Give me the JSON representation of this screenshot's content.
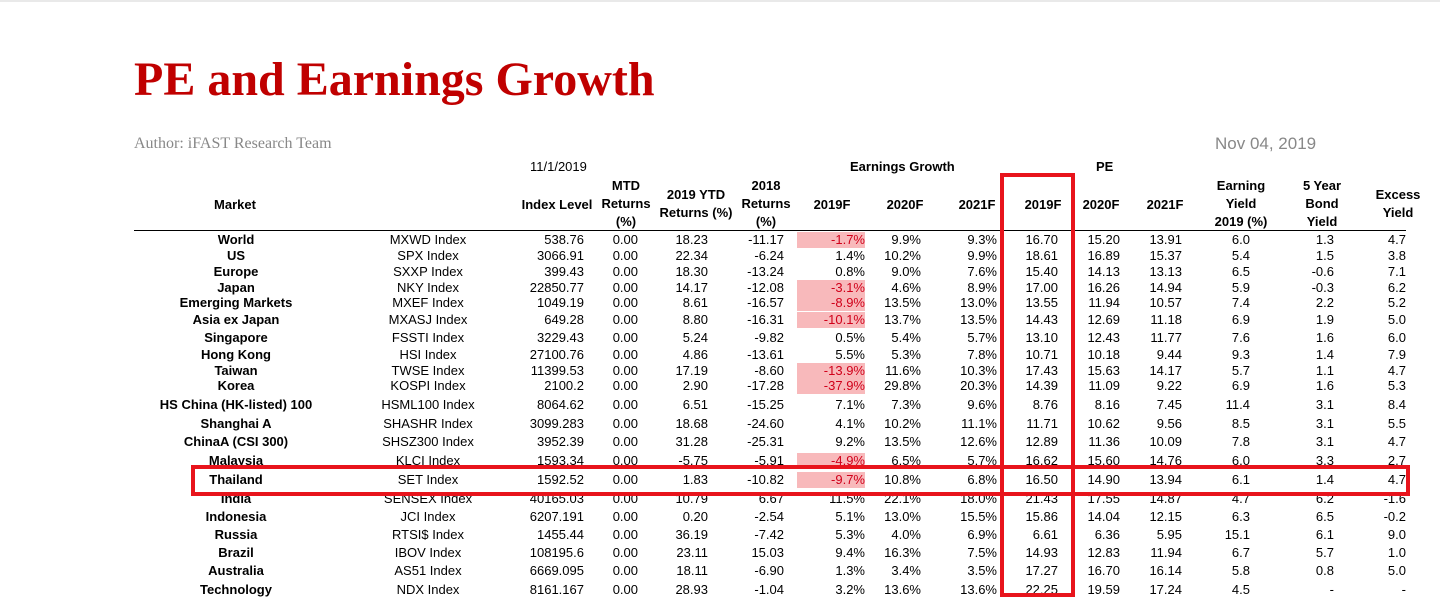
{
  "title": "PE and Earnings Growth",
  "author": "Author: iFAST Research Team",
  "date": "Nov 04, 2019",
  "table": {
    "date_header": "11/1/2019",
    "group_earnings": "Earnings Growth",
    "group_pe": "PE",
    "columns": {
      "market": "Market",
      "index_level": "Index Level",
      "mtd": [
        "MTD",
        "Returns",
        "(%)"
      ],
      "ytd": [
        "2019 YTD",
        "Returns (%)"
      ],
      "ret2018": [
        "2018",
        "Returns",
        "(%)"
      ],
      "eg2019": "2019F",
      "eg2020": "2020F",
      "eg2021": "2021F",
      "pe2019": "2019F",
      "pe2020": "2020F",
      "pe2021": "2021F",
      "earning_yield": [
        "Earning",
        "Yield",
        "2019 (%)"
      ],
      "bond": [
        "5 Year",
        "Bond",
        "Yield"
      ],
      "excess": [
        "Excess",
        "Yield"
      ]
    },
    "rows": [
      {
        "market": "World",
        "ticker": "MXWD Index",
        "level": "538.76",
        "mtd": "0.00",
        "ytd": "18.23",
        "r2018": "-11.17",
        "eg2019": "-1.7%",
        "eg2020": "9.9%",
        "eg2021": "9.3%",
        "pe2019": "16.70",
        "pe2020": "15.20",
        "pe2021": "13.91",
        "ey": "6.0",
        "bond": "1.3",
        "excess": "4.7",
        "neg": true
      },
      {
        "market": "US",
        "ticker": "SPX Index",
        "level": "3066.91",
        "mtd": "0.00",
        "ytd": "22.34",
        "r2018": "-6.24",
        "eg2019": "1.4%",
        "eg2020": "10.2%",
        "eg2021": "9.9%",
        "pe2019": "18.61",
        "pe2020": "16.89",
        "pe2021": "15.37",
        "ey": "5.4",
        "bond": "1.5",
        "excess": "3.8",
        "neg": false
      },
      {
        "market": "Europe",
        "ticker": "SXXP Index",
        "level": "399.43",
        "mtd": "0.00",
        "ytd": "18.30",
        "r2018": "-13.24",
        "eg2019": "0.8%",
        "eg2020": "9.0%",
        "eg2021": "7.6%",
        "pe2019": "15.40",
        "pe2020": "14.13",
        "pe2021": "13.13",
        "ey": "6.5",
        "bond": "-0.6",
        "excess": "7.1",
        "neg": false
      },
      {
        "market": "Japan",
        "ticker": "NKY Index",
        "level": "22850.77",
        "mtd": "0.00",
        "ytd": "14.17",
        "r2018": "-12.08",
        "eg2019": "-3.1%",
        "eg2020": "4.6%",
        "eg2021": "8.9%",
        "pe2019": "17.00",
        "pe2020": "16.26",
        "pe2021": "14.94",
        "ey": "5.9",
        "bond": "-0.3",
        "excess": "6.2",
        "neg": true
      },
      {
        "market": "Emerging Markets",
        "ticker": "MXEF Index",
        "level": "1049.19",
        "mtd": "0.00",
        "ytd": "8.61",
        "r2018": "-16.57",
        "eg2019": "-8.9%",
        "eg2020": "13.5%",
        "eg2021": "13.0%",
        "pe2019": "13.55",
        "pe2020": "11.94",
        "pe2021": "10.57",
        "ey": "7.4",
        "bond": "2.2",
        "excess": "5.2",
        "neg": true
      },
      {
        "market": "Asia ex Japan",
        "ticker": "MXASJ Index",
        "level": "649.28",
        "mtd": "0.00",
        "ytd": "8.80",
        "r2018": "-16.31",
        "eg2019": "-10.1%",
        "eg2020": "13.7%",
        "eg2021": "13.5%",
        "pe2019": "14.43",
        "pe2020": "12.69",
        "pe2021": "11.18",
        "ey": "6.9",
        "bond": "1.9",
        "excess": "5.0",
        "neg": true
      },
      {
        "market": "Singapore",
        "ticker": "FSSTI Index",
        "level": "3229.43",
        "mtd": "0.00",
        "ytd": "5.24",
        "r2018": "-9.82",
        "eg2019": "0.5%",
        "eg2020": "5.4%",
        "eg2021": "5.7%",
        "pe2019": "13.10",
        "pe2020": "12.43",
        "pe2021": "11.77",
        "ey": "7.6",
        "bond": "1.6",
        "excess": "6.0",
        "neg": false
      },
      {
        "market": "Hong Kong",
        "ticker": "HSI Index",
        "level": "27100.76",
        "mtd": "0.00",
        "ytd": "4.86",
        "r2018": "-13.61",
        "eg2019": "5.5%",
        "eg2020": "5.3%",
        "eg2021": "7.8%",
        "pe2019": "10.71",
        "pe2020": "10.18",
        "pe2021": "9.44",
        "ey": "9.3",
        "bond": "1.4",
        "excess": "7.9",
        "neg": false
      },
      {
        "market": "Taiwan",
        "ticker": "TWSE Index",
        "level": "11399.53",
        "mtd": "0.00",
        "ytd": "17.19",
        "r2018": "-8.60",
        "eg2019": "-13.9%",
        "eg2020": "11.6%",
        "eg2021": "10.3%",
        "pe2019": "17.43",
        "pe2020": "15.63",
        "pe2021": "14.17",
        "ey": "5.7",
        "bond": "1.1",
        "excess": "4.7",
        "neg": true
      },
      {
        "market": "Korea",
        "ticker": "KOSPI Index",
        "level": "2100.2",
        "mtd": "0.00",
        "ytd": "2.90",
        "r2018": "-17.28",
        "eg2019": "-37.9%",
        "eg2020": "29.8%",
        "eg2021": "20.3%",
        "pe2019": "14.39",
        "pe2020": "11.09",
        "pe2021": "9.22",
        "ey": "6.9",
        "bond": "1.6",
        "excess": "5.3",
        "neg": true
      },
      {
        "market": "HS China (HK-listed) 100",
        "ticker": "HSML100 Index",
        "level": "8064.62",
        "mtd": "0.00",
        "ytd": "6.51",
        "r2018": "-15.25",
        "eg2019": "7.1%",
        "eg2020": "7.3%",
        "eg2021": "9.6%",
        "pe2019": "8.76",
        "pe2020": "8.16",
        "pe2021": "7.45",
        "ey": "11.4",
        "bond": "3.1",
        "excess": "8.4",
        "neg": false
      },
      {
        "market": "Shanghai A",
        "ticker": "SHASHR Index",
        "level": "3099.283",
        "mtd": "0.00",
        "ytd": "18.68",
        "r2018": "-24.60",
        "eg2019": "4.1%",
        "eg2020": "10.2%",
        "eg2021": "11.1%",
        "pe2019": "11.71",
        "pe2020": "10.62",
        "pe2021": "9.56",
        "ey": "8.5",
        "bond": "3.1",
        "excess": "5.5",
        "neg": false
      },
      {
        "market": "ChinaA (CSI 300)",
        "ticker": "SHSZ300 Index",
        "level": "3952.39",
        "mtd": "0.00",
        "ytd": "31.28",
        "r2018": "-25.31",
        "eg2019": "9.2%",
        "eg2020": "13.5%",
        "eg2021": "12.6%",
        "pe2019": "12.89",
        "pe2020": "11.36",
        "pe2021": "10.09",
        "ey": "7.8",
        "bond": "3.1",
        "excess": "4.7",
        "neg": false
      },
      {
        "market": "Malaysia",
        "ticker": "KLCI Index",
        "level": "1593.34",
        "mtd": "0.00",
        "ytd": "-5.75",
        "r2018": "-5.91",
        "eg2019": "-4.9%",
        "eg2020": "6.5%",
        "eg2021": "5.7%",
        "pe2019": "16.62",
        "pe2020": "15.60",
        "pe2021": "14.76",
        "ey": "6.0",
        "bond": "3.3",
        "excess": "2.7",
        "neg": true
      },
      {
        "market": "Thailand",
        "ticker": "SET Index",
        "level": "1592.52",
        "mtd": "0.00",
        "ytd": "1.83",
        "r2018": "-10.82",
        "eg2019": "-9.7%",
        "eg2020": "10.8%",
        "eg2021": "6.8%",
        "pe2019": "16.50",
        "pe2020": "14.90",
        "pe2021": "13.94",
        "ey": "6.1",
        "bond": "1.4",
        "excess": "4.7",
        "neg": true
      },
      {
        "market": "India",
        "ticker": "SENSEX Index",
        "level": "40165.03",
        "mtd": "0.00",
        "ytd": "10.79",
        "r2018": "6.67",
        "eg2019": "11.5%",
        "eg2020": "22.1%",
        "eg2021": "18.0%",
        "pe2019": "21.43",
        "pe2020": "17.55",
        "pe2021": "14.87",
        "ey": "4.7",
        "bond": "6.2",
        "excess": "-1.6",
        "neg": false
      },
      {
        "market": "Indonesia",
        "ticker": "JCI Index",
        "level": "6207.191",
        "mtd": "0.00",
        "ytd": "0.20",
        "r2018": "-2.54",
        "eg2019": "5.1%",
        "eg2020": "13.0%",
        "eg2021": "15.5%",
        "pe2019": "15.86",
        "pe2020": "14.04",
        "pe2021": "12.15",
        "ey": "6.3",
        "bond": "6.5",
        "excess": "-0.2",
        "neg": false
      },
      {
        "market": "Russia",
        "ticker": "RTSI$ Index",
        "level": "1455.44",
        "mtd": "0.00",
        "ytd": "36.19",
        "r2018": "-7.42",
        "eg2019": "5.3%",
        "eg2020": "4.0%",
        "eg2021": "6.9%",
        "pe2019": "6.61",
        "pe2020": "6.36",
        "pe2021": "5.95",
        "ey": "15.1",
        "bond": "6.1",
        "excess": "9.0",
        "neg": false
      },
      {
        "market": "Brazil",
        "ticker": "IBOV Index",
        "level": "108195.6",
        "mtd": "0.00",
        "ytd": "23.11",
        "r2018": "15.03",
        "eg2019": "9.4%",
        "eg2020": "16.3%",
        "eg2021": "7.5%",
        "pe2019": "14.93",
        "pe2020": "12.83",
        "pe2021": "11.94",
        "ey": "6.7",
        "bond": "5.7",
        "excess": "1.0",
        "neg": false
      },
      {
        "market": "Australia",
        "ticker": "AS51 Index",
        "level": "6669.095",
        "mtd": "0.00",
        "ytd": "18.11",
        "r2018": "-6.90",
        "eg2019": "1.3%",
        "eg2020": "3.4%",
        "eg2021": "3.5%",
        "pe2019": "17.27",
        "pe2020": "16.70",
        "pe2021": "16.14",
        "ey": "5.8",
        "bond": "0.8",
        "excess": "5.0",
        "neg": false
      },
      {
        "market": "Technology",
        "ticker": "NDX Index",
        "level": "8161.167",
        "mtd": "0.00",
        "ytd": "28.93",
        "r2018": "-1.04",
        "eg2019": "3.2%",
        "eg2020": "13.6%",
        "eg2021": "13.6%",
        "pe2019": "22.25",
        "pe2020": "19.59",
        "pe2021": "17.24",
        "ey": "4.5",
        "bond": "-",
        "excess": "-",
        "neg": false
      }
    ]
  },
  "colors": {
    "title": "#c00000",
    "highlight_border": "#e8141c",
    "negative_fill": "#f8b9bb",
    "negative_text": "#d0001a"
  }
}
